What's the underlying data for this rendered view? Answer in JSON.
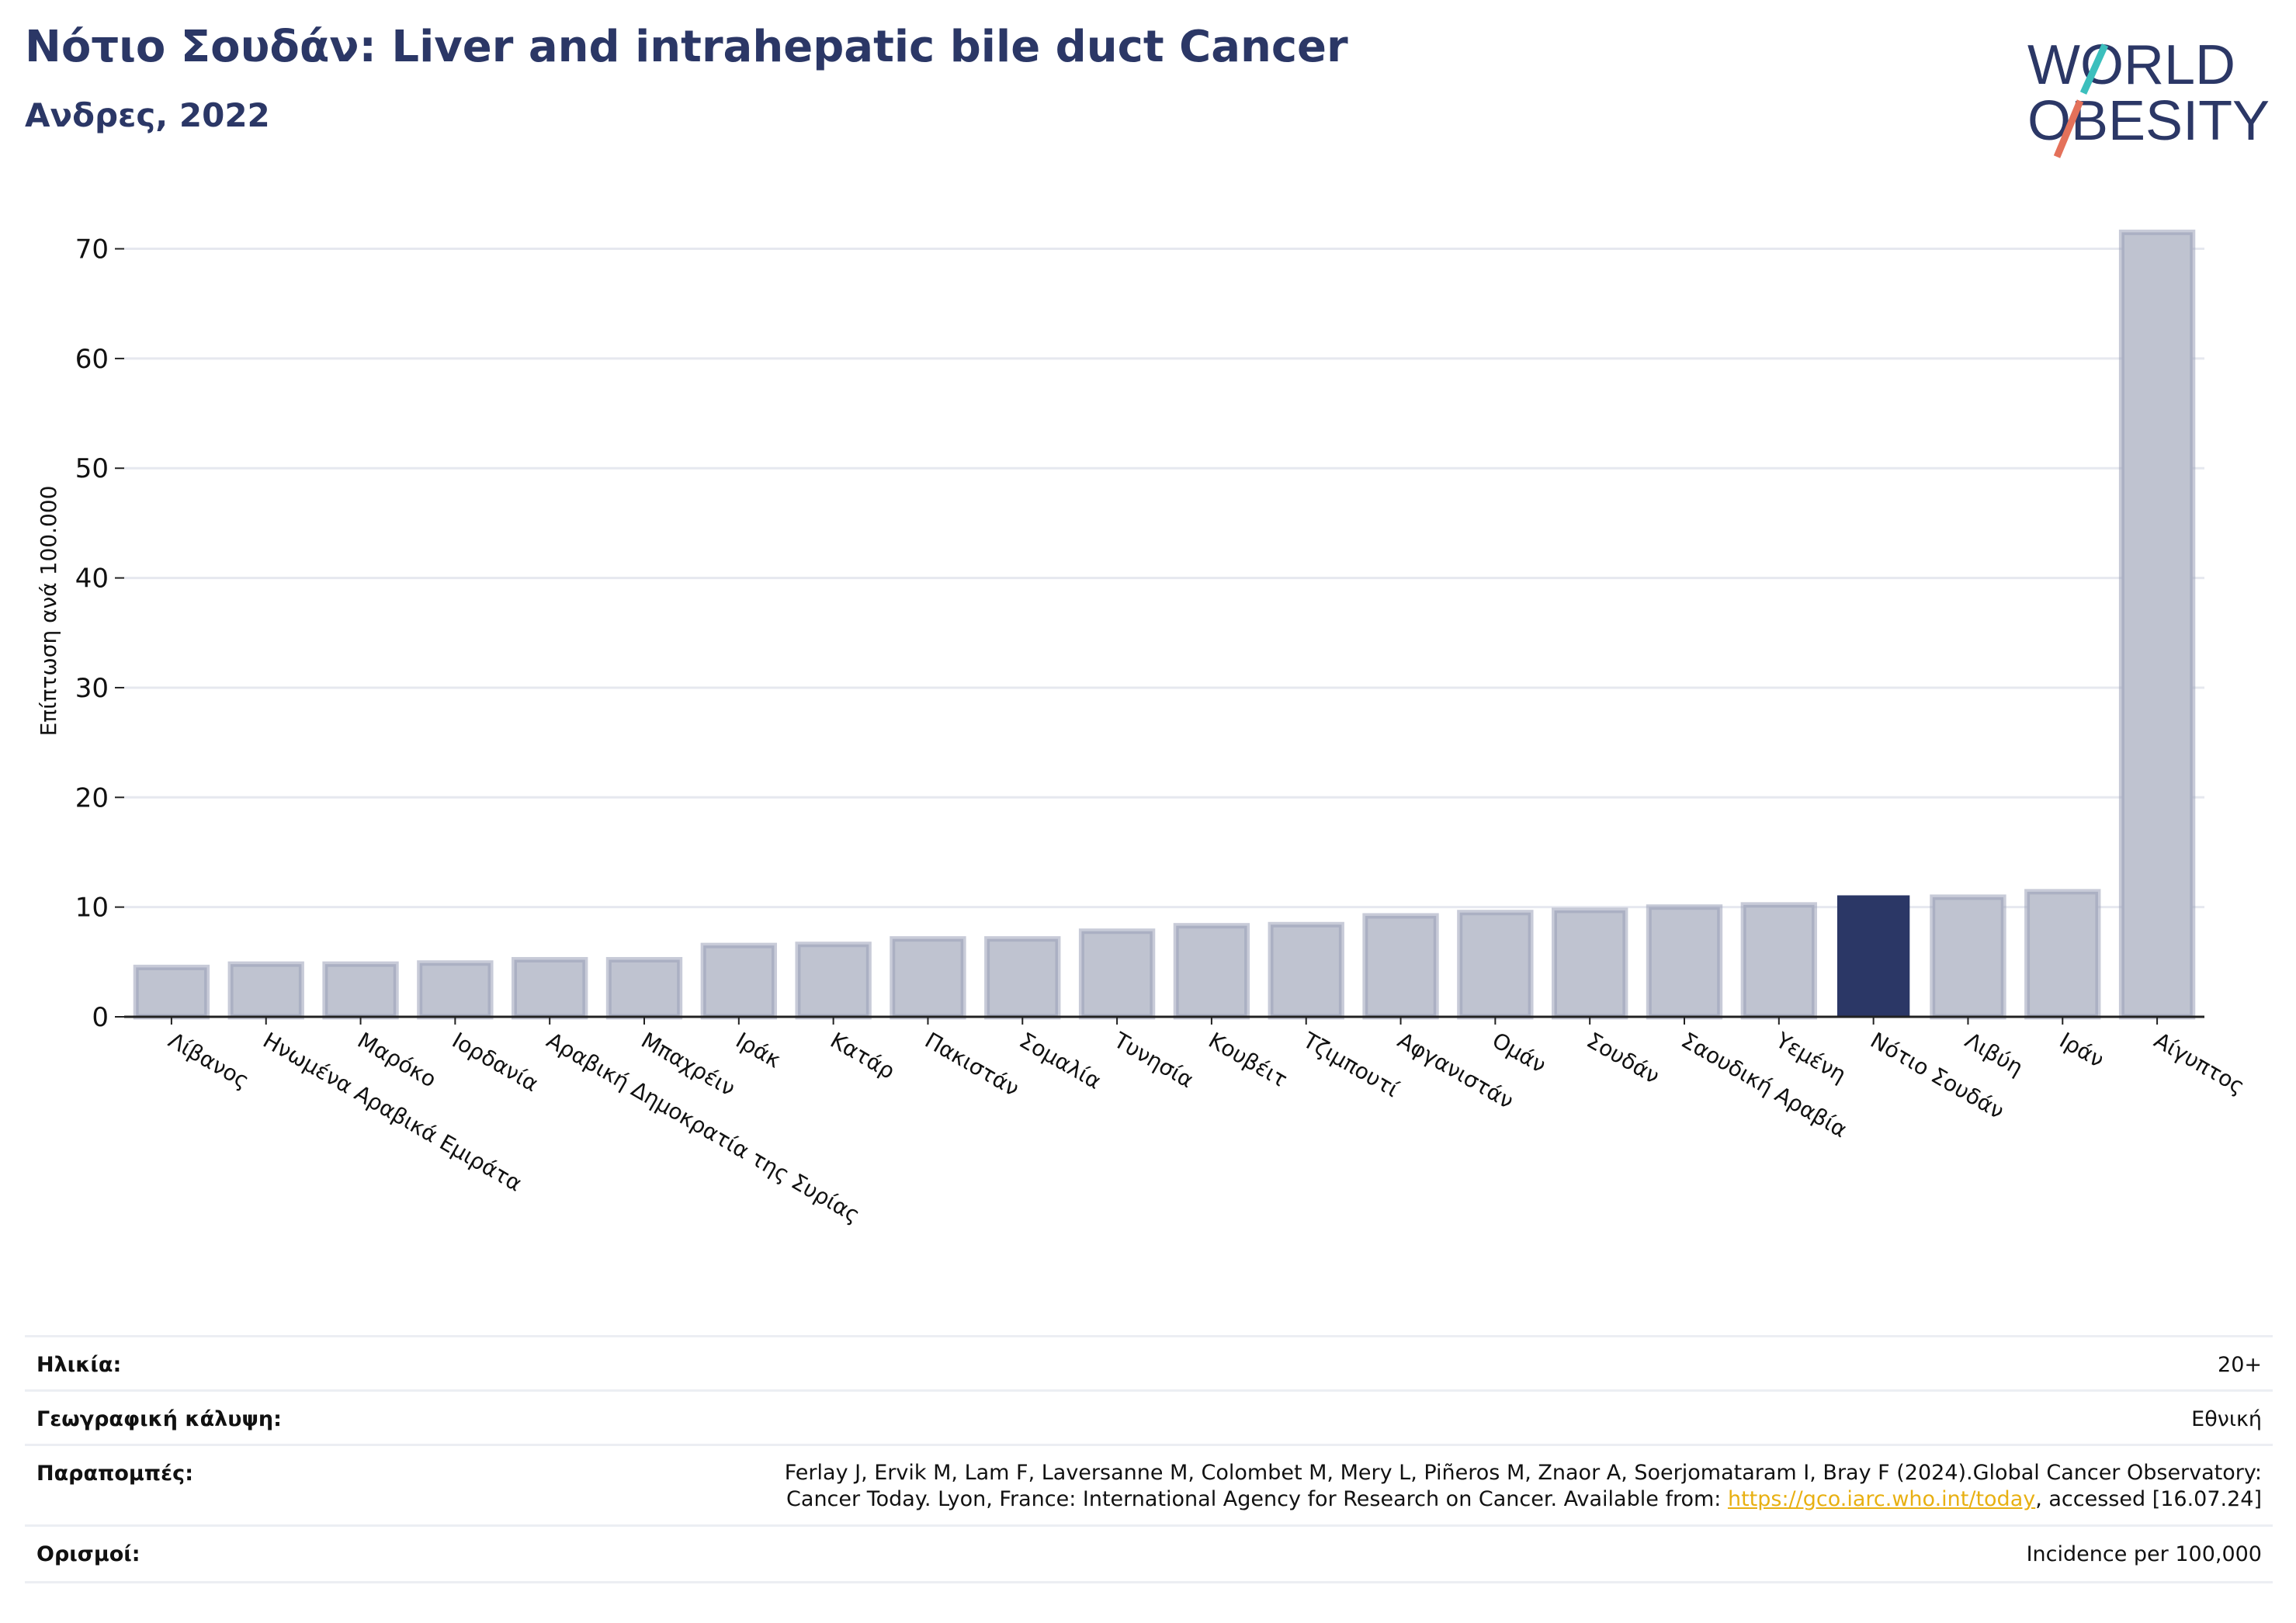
{
  "header": {
    "title": "Νότιο Σουδάν: Liver and intrahepatic bile duct Cancer",
    "subtitle": "Ανδρες, 2022"
  },
  "logo": {
    "line1": "WORLD",
    "line2": "OBESITY"
  },
  "chart_data": {
    "type": "bar",
    "title": "Νότιο Σουδάν: Liver and intrahepatic bile duct Cancer",
    "subtitle": "Ανδρες, 2022",
    "ylabel": "Επίπτωση ανά 100.000",
    "xlabel": "",
    "ylim": [
      0,
      74
    ],
    "yticks": [
      0,
      10,
      20,
      30,
      40,
      50,
      60,
      70
    ],
    "grid": true,
    "highlight": "Νότιο Σουδάν",
    "colors": {
      "bar": "#bfc3d0",
      "bar_edge": "#9aa0b8",
      "highlight": "#2b3766",
      "grid": "#e6e8ef"
    },
    "categories": [
      "Λίβανος",
      "Ηνωμένα Αραβικά Εμιράτα",
      "Μαρόκο",
      "Ιορδανία",
      "Αραβική Δημοκρατία της Συρίας",
      "Μπαχρέιν",
      "Ιράκ",
      "Κατάρ",
      "Πακιστάν",
      "Σομαλία",
      "Τυνησία",
      "Κουβέιτ",
      "Τζιμπουτί",
      "Αφγανιστάν",
      "Ομάν",
      "Σουδάν",
      "Σαουδική Αραβία",
      "Υεμένη",
      "Νότιο Σουδάν",
      "Λιβύη",
      "Ιράν",
      "Αίγυπτος"
    ],
    "values": [
      4.5,
      4.8,
      4.8,
      4.9,
      5.2,
      5.2,
      6.5,
      6.6,
      7.1,
      7.1,
      7.8,
      8.3,
      8.4,
      9.2,
      9.5,
      9.7,
      10.0,
      10.2,
      11.0,
      10.9,
      11.4,
      71.5
    ]
  },
  "info": {
    "rows": [
      {
        "label": "Ηλικία:",
        "value": "20+"
      },
      {
        "label": "Γεωγραφική κάλυψη:",
        "value": "Εθνική"
      },
      {
        "label": "Παραπομπές:",
        "value_line1": "Ferlay J, Ervik M, Lam F, Laversanne M, Colombet M, Mery L, Piñeros M, Znaor A, Soerjomataram I, Bray F (2024).Global Cancer Observatory:",
        "value_line2_pre": "Cancer Today. Lyon, France: International Agency for Research on Cancer. Available from: ",
        "value_link": "https://gco.iarc.who.int/today",
        "value_line2_post": ", accessed [16.07.24]"
      },
      {
        "label": "Ορισμοί:",
        "value": "Incidence per 100,000"
      }
    ]
  }
}
